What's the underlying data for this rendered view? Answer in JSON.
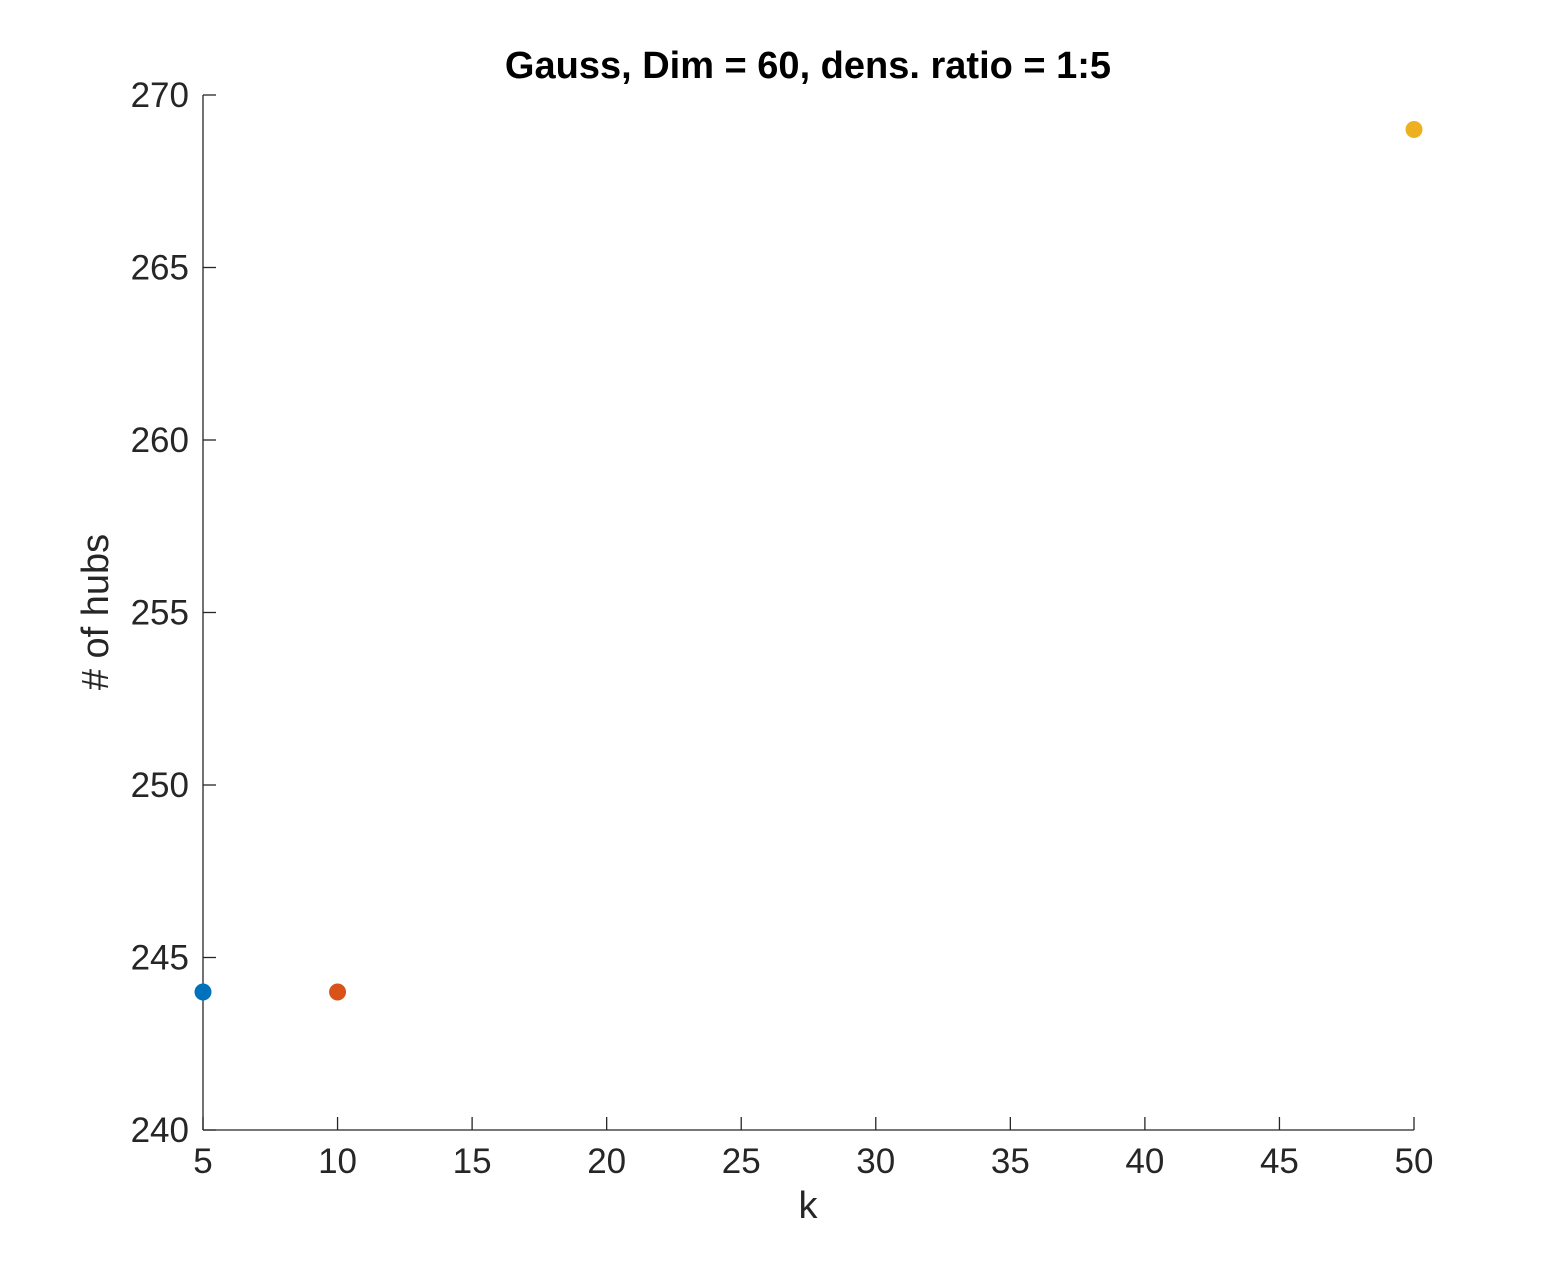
{
  "chart_data": {
    "type": "scatter",
    "title": "Gauss, Dim = 60, dens. ratio = 1:5",
    "xlabel": "k",
    "ylabel": "# of hubs",
    "xlim": [
      5,
      50
    ],
    "ylim": [
      240,
      270
    ],
    "xticks": [
      5,
      10,
      15,
      20,
      25,
      30,
      35,
      40,
      45,
      50
    ],
    "yticks": [
      240,
      245,
      250,
      255,
      260,
      265,
      270
    ],
    "grid": false,
    "legend": "none",
    "points": [
      {
        "x": 5,
        "y": 244,
        "color": "#0072BD"
      },
      {
        "x": 10,
        "y": 244,
        "color": "#D95319"
      },
      {
        "x": 50,
        "y": 269,
        "color": "#EDB120"
      }
    ],
    "axis_color": "#262626"
  }
}
